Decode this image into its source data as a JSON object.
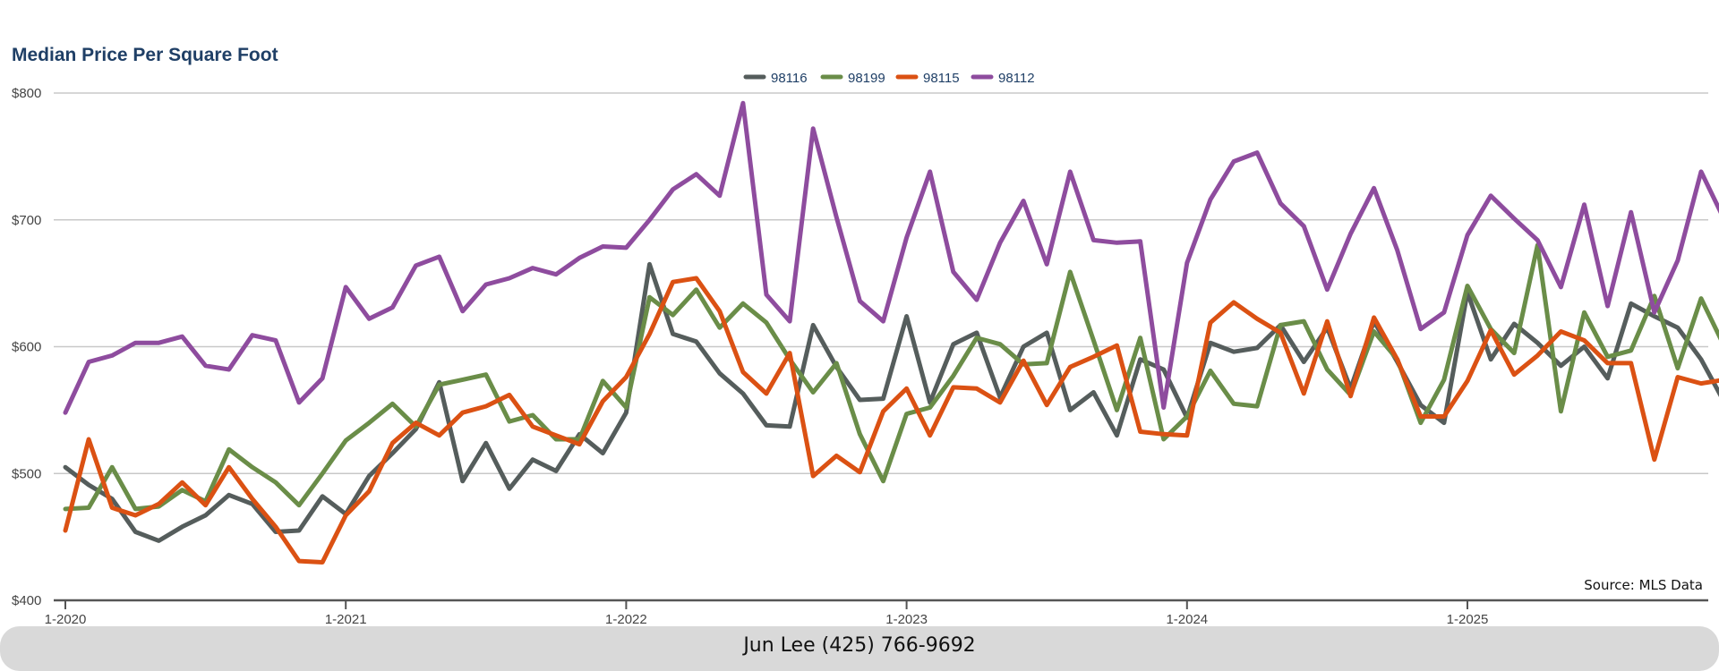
{
  "footer": {
    "contact": "Jun Lee (425) 766-9692"
  },
  "chart_data": {
    "type": "line",
    "title": "Median Price Per Square Foot",
    "xlabel": "",
    "ylabel": "",
    "source": "Source: MLS Data",
    "grid": true,
    "legend_position": "top-center",
    "ylim": [
      400,
      800
    ],
    "y_ticks": [
      400,
      500,
      600,
      700,
      800
    ],
    "y_tick_labels": [
      "$400",
      "$500",
      "$600",
      "$700",
      "$800"
    ],
    "x_start": "2020-01",
    "x_end": "2025-12",
    "x_ticks": [
      "1-2020",
      "1-2021",
      "1-2022",
      "1-2023",
      "1-2024",
      "1-2025"
    ],
    "x": [
      "2020-01",
      "2020-02",
      "2020-03",
      "2020-04",
      "2020-05",
      "2020-06",
      "2020-07",
      "2020-08",
      "2020-09",
      "2020-10",
      "2020-11",
      "2020-12",
      "2021-01",
      "2021-02",
      "2021-03",
      "2021-04",
      "2021-05",
      "2021-06",
      "2021-07",
      "2021-08",
      "2021-09",
      "2021-10",
      "2021-11",
      "2021-12",
      "2022-01",
      "2022-02",
      "2022-03",
      "2022-04",
      "2022-05",
      "2022-06",
      "2022-07",
      "2022-08",
      "2022-09",
      "2022-10",
      "2022-11",
      "2022-12",
      "2023-01",
      "2023-02",
      "2023-03",
      "2023-04",
      "2023-05",
      "2023-06",
      "2023-07",
      "2023-08",
      "2023-09",
      "2023-10",
      "2023-11",
      "2023-12",
      "2024-01",
      "2024-02",
      "2024-03",
      "2024-04",
      "2024-05",
      "2024-06",
      "2024-07",
      "2024-08",
      "2024-09",
      "2024-10",
      "2024-11",
      "2024-12",
      "2025-01",
      "2025-02",
      "2025-03",
      "2025-04",
      "2025-05",
      "2025-06",
      "2025-07",
      "2025-08",
      "2025-09",
      "2025-10",
      "2025-11",
      "2025-12"
    ],
    "series": [
      {
        "name": "98116",
        "color": "#555d5c",
        "values": [
          505,
          491,
          480,
          454,
          447,
          458,
          467,
          483,
          476,
          454,
          455,
          482,
          468,
          498,
          516,
          535,
          572,
          494,
          524,
          488,
          511,
          502,
          531,
          516,
          548,
          665,
          610,
          604,
          579,
          563,
          538,
          537,
          617,
          584,
          558,
          559,
          624,
          556,
          602,
          611,
          560,
          600,
          611,
          550,
          564,
          530,
          590,
          582,
          544,
          603,
          596,
          599,
          617,
          588,
          615,
          567,
          620,
          588,
          554,
          540,
          643,
          590,
          618,
          603,
          585,
          600,
          575,
          634,
          624,
          615,
          590,
          556
        ]
      },
      {
        "name": "98199",
        "color": "#6a8d48",
        "values": [
          472,
          473,
          505,
          472,
          474,
          487,
          478,
          519,
          505,
          493,
          475,
          500,
          526,
          540,
          555,
          537,
          570,
          574,
          578,
          541,
          546,
          527,
          527,
          573,
          552,
          639,
          625,
          645,
          615,
          634,
          619,
          590,
          564,
          587,
          531,
          494,
          547,
          552,
          577,
          607,
          602,
          586,
          587,
          659,
          605,
          550,
          607,
          527,
          545,
          581,
          555,
          553,
          617,
          620,
          582,
          562,
          612,
          590,
          540,
          574,
          648,
          614,
          595,
          680,
          549,
          627,
          592,
          597,
          640,
          583,
          638,
          600
        ]
      },
      {
        "name": "98115",
        "color": "#db5113",
        "values": [
          455,
          527,
          473,
          467,
          476,
          493,
          475,
          505,
          480,
          458,
          431,
          430,
          467,
          486,
          524,
          540,
          530,
          548,
          553,
          562,
          537,
          530,
          523,
          557,
          576,
          610,
          651,
          654,
          628,
          580,
          563,
          595,
          498,
          514,
          501,
          549,
          567,
          530,
          568,
          567,
          556,
          589,
          554,
          584,
          592,
          601,
          533,
          531,
          530,
          619,
          635,
          622,
          611,
          563,
          620,
          561,
          623,
          590,
          545,
          545,
          573,
          613,
          578,
          593,
          612,
          605,
          587,
          587,
          511,
          576,
          571,
          574
        ]
      },
      {
        "name": "98112",
        "color": "#8e4c9e",
        "values": [
          548,
          588,
          593,
          603,
          603,
          608,
          585,
          582,
          609,
          605,
          556,
          575,
          647,
          622,
          631,
          664,
          671,
          628,
          649,
          654,
          662,
          657,
          670,
          679,
          678,
          700,
          724,
          736,
          719,
          792,
          641,
          620,
          772,
          702,
          636,
          620,
          686,
          738,
          659,
          637,
          682,
          715,
          665,
          738,
          684,
          682,
          683,
          552,
          666,
          716,
          746,
          753,
          713,
          695,
          645,
          689,
          725,
          676,
          614,
          627,
          688,
          719,
          701,
          684,
          647,
          712,
          632,
          706,
          627,
          668,
          738,
          700
        ]
      }
    ]
  }
}
